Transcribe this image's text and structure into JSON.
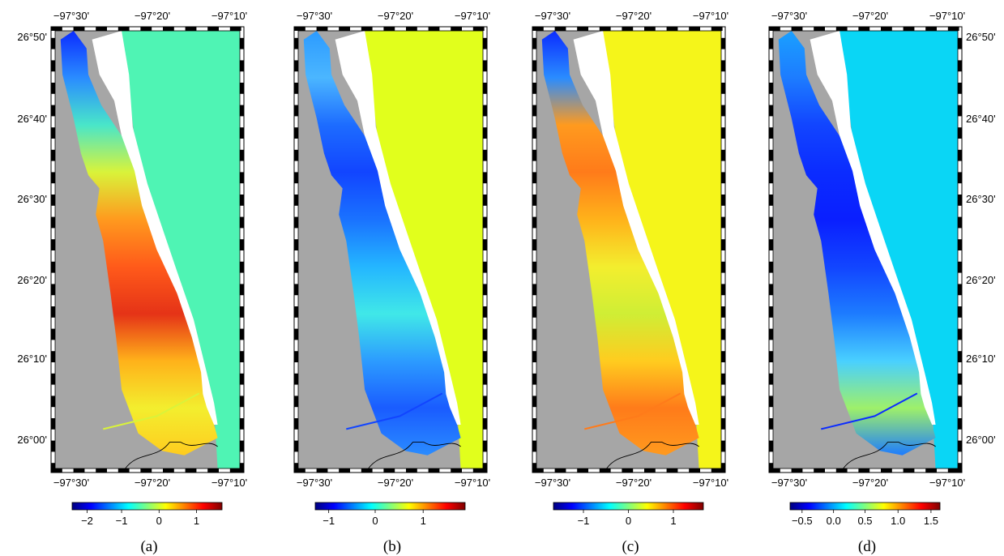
{
  "figure": {
    "lon_ticks": [
      "−97°30'",
      "−97°20'",
      "−97°10'"
    ],
    "lat_ticks": [
      "26°50'",
      "26°40'",
      "26°30'",
      "26°20'",
      "26°10'",
      "26°00'"
    ],
    "colormap": [
      "#00007f",
      "#0000ff",
      "#007fff",
      "#00ffff",
      "#7fff7f",
      "#ffff00",
      "#ff7f00",
      "#ff0000",
      "#7f0000"
    ],
    "land_color": "#a6a6a6",
    "coastline_color": "#000000"
  },
  "panels": [
    {
      "caption": "(a)",
      "colorbar_ticks": [
        "−2",
        "−1",
        "0",
        "1"
      ],
      "colorbar_tick_positions": [
        0.1,
        0.33,
        0.58,
        0.83
      ],
      "offshore_color": "#4ff4b4",
      "inner_gradient": [
        "#0b2cff",
        "#2a8cff",
        "#49e6c9",
        "#d9f33a",
        "#ff9a1e",
        "#ff5a1a",
        "#e53317",
        "#ffb21a",
        "#f3ee2e",
        "#ffcc1f"
      ]
    },
    {
      "caption": "(b)",
      "colorbar_ticks": [
        "−1",
        "0",
        "1"
      ],
      "colorbar_tick_positions": [
        0.09,
        0.4,
        0.72
      ],
      "offshore_color": "#e1ff1c",
      "inner_gradient": [
        "#2c9bff",
        "#4bb6ff",
        "#1d6cff",
        "#1245ff",
        "#1a72ff",
        "#24b6ff",
        "#40e8e8",
        "#2c9bff",
        "#1a5cff",
        "#2a8cff"
      ]
    },
    {
      "caption": "(c)",
      "colorbar_ticks": [
        "−1",
        "0",
        "1"
      ],
      "colorbar_tick_positions": [
        0.2,
        0.5,
        0.8
      ],
      "offshore_color": "#f5f51a",
      "inner_gradient": [
        "#0b2cff",
        "#2a8cff",
        "#ff9a1e",
        "#ff7b1a",
        "#ffb21a",
        "#f3ee2e",
        "#cfee35",
        "#ffcc1f",
        "#ff7b1a",
        "#ff9a1e"
      ]
    },
    {
      "caption": "(d)",
      "colorbar_ticks": [
        "−0.5",
        "0.0",
        "0.5",
        "1.0",
        "1.5"
      ],
      "colorbar_tick_positions": [
        0.08,
        0.29,
        0.5,
        0.72,
        0.94
      ],
      "offshore_color": "#0ad6f5",
      "inner_gradient": [
        "#1aa0ff",
        "#1d7cff",
        "#1245ff",
        "#0b2cff",
        "#0a1fff",
        "#1245ff",
        "#1d7cff",
        "#49d0ff",
        "#9ef06a",
        "#1d7cff"
      ]
    }
  ]
}
